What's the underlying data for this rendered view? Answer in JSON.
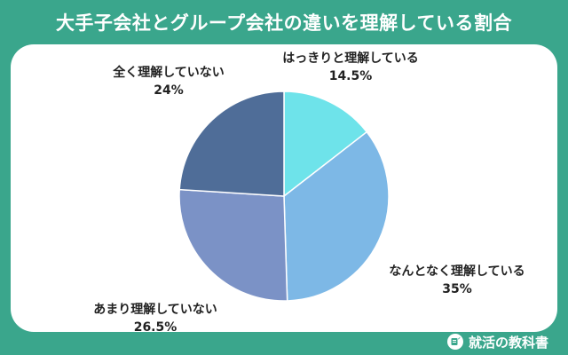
{
  "title": "大手子会社とグループ会社の違いを理解している割合",
  "brand": "就活の教科書",
  "chart_data": {
    "type": "pie",
    "title": "大手子会社とグループ会社の違いを理解している割合",
    "slices": [
      {
        "label": "はっきりと理解している",
        "value": 14.5,
        "value_label": "14.5%",
        "color": "#6ee3ea"
      },
      {
        "label": "なんとなく理解している",
        "value": 35,
        "value_label": "35%",
        "color": "#7db8e6"
      },
      {
        "label": "あまり理解していない",
        "value": 26.5,
        "value_label": "26.5%",
        "color": "#7b92c6"
      },
      {
        "label": "全く理解していない",
        "value": 24,
        "value_label": "24%",
        "color": "#4f6d98"
      }
    ],
    "start": "12 o'clock",
    "direction": "clockwise",
    "legend": "none (labels next to slices)"
  }
}
